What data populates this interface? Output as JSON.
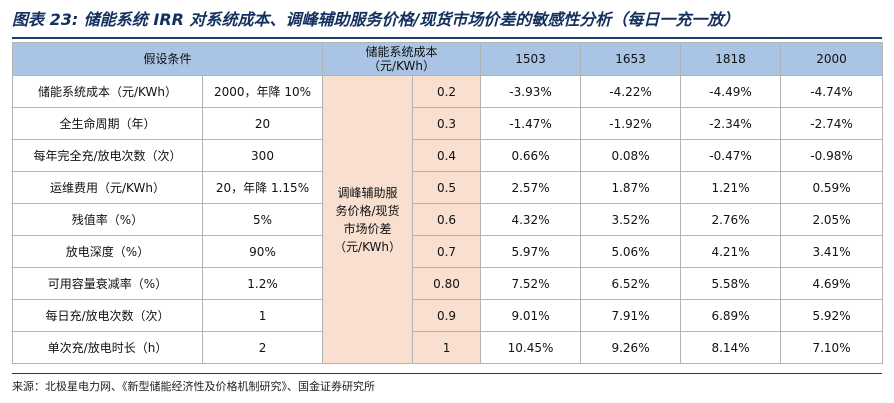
{
  "title": "图表 23: 储能系统 IRR 对系统成本、调峰辅助服务价格/现货市场价差的敏感性分析（每日一充一放）",
  "header": {
    "assumptions": "假设条件",
    "cost_line1": "储能系统成本",
    "cost_line2": "（元/KWh）",
    "costs": [
      "1503",
      "1653",
      "1818",
      "2000"
    ]
  },
  "assumptions": [
    {
      "label": "储能系统成本（元/KWh）",
      "value": "2000，年降 10%"
    },
    {
      "label": "全生命周期（年）",
      "value": "20"
    },
    {
      "label": "每年完全充/放电次数（次）",
      "value": "300"
    },
    {
      "label": "运维费用（元/KWh）",
      "value": "20，年降 1.15%"
    },
    {
      "label": "残值率（%）",
      "value": "5%"
    },
    {
      "label": "放电深度（%）",
      "value": "90%"
    },
    {
      "label": "可用容量衰减率（%）",
      "value": "1.2%"
    },
    {
      "label": "每日充/放电次数（次）",
      "value": "1"
    },
    {
      "label": "单次充/放电时长（h）",
      "value": "2"
    }
  ],
  "mid_label": {
    "line1": "调峰辅助服",
    "line2": "务价格/现货",
    "line3": "市场价差",
    "line4": "（元/KWh）"
  },
  "rows": [
    {
      "price": "0.2",
      "irr": [
        "-3.93%",
        "-4.22%",
        "-4.49%",
        "-4.74%"
      ]
    },
    {
      "price": "0.3",
      "irr": [
        "-1.47%",
        "-1.92%",
        "-2.34%",
        "-2.74%"
      ]
    },
    {
      "price": "0.4",
      "irr": [
        "0.66%",
        "0.08%",
        "-0.47%",
        "-0.98%"
      ]
    },
    {
      "price": "0.5",
      "irr": [
        "2.57%",
        "1.87%",
        "1.21%",
        "0.59%"
      ]
    },
    {
      "price": "0.6",
      "irr": [
        "4.32%",
        "3.52%",
        "2.76%",
        "2.05%"
      ]
    },
    {
      "price": "0.7",
      "irr": [
        "5.97%",
        "5.06%",
        "4.21%",
        "3.41%"
      ]
    },
    {
      "price": "0.80",
      "irr": [
        "7.52%",
        "6.52%",
        "5.58%",
        "4.69%"
      ]
    },
    {
      "price": "0.9",
      "irr": [
        "9.01%",
        "7.91%",
        "6.89%",
        "5.92%"
      ]
    },
    {
      "price": "1",
      "irr": [
        "10.45%",
        "9.26%",
        "8.14%",
        "7.10%"
      ]
    }
  ],
  "source": "来源：北极星电力网、《新型储能经济性及价格机制研究》、国金证券研究所"
}
